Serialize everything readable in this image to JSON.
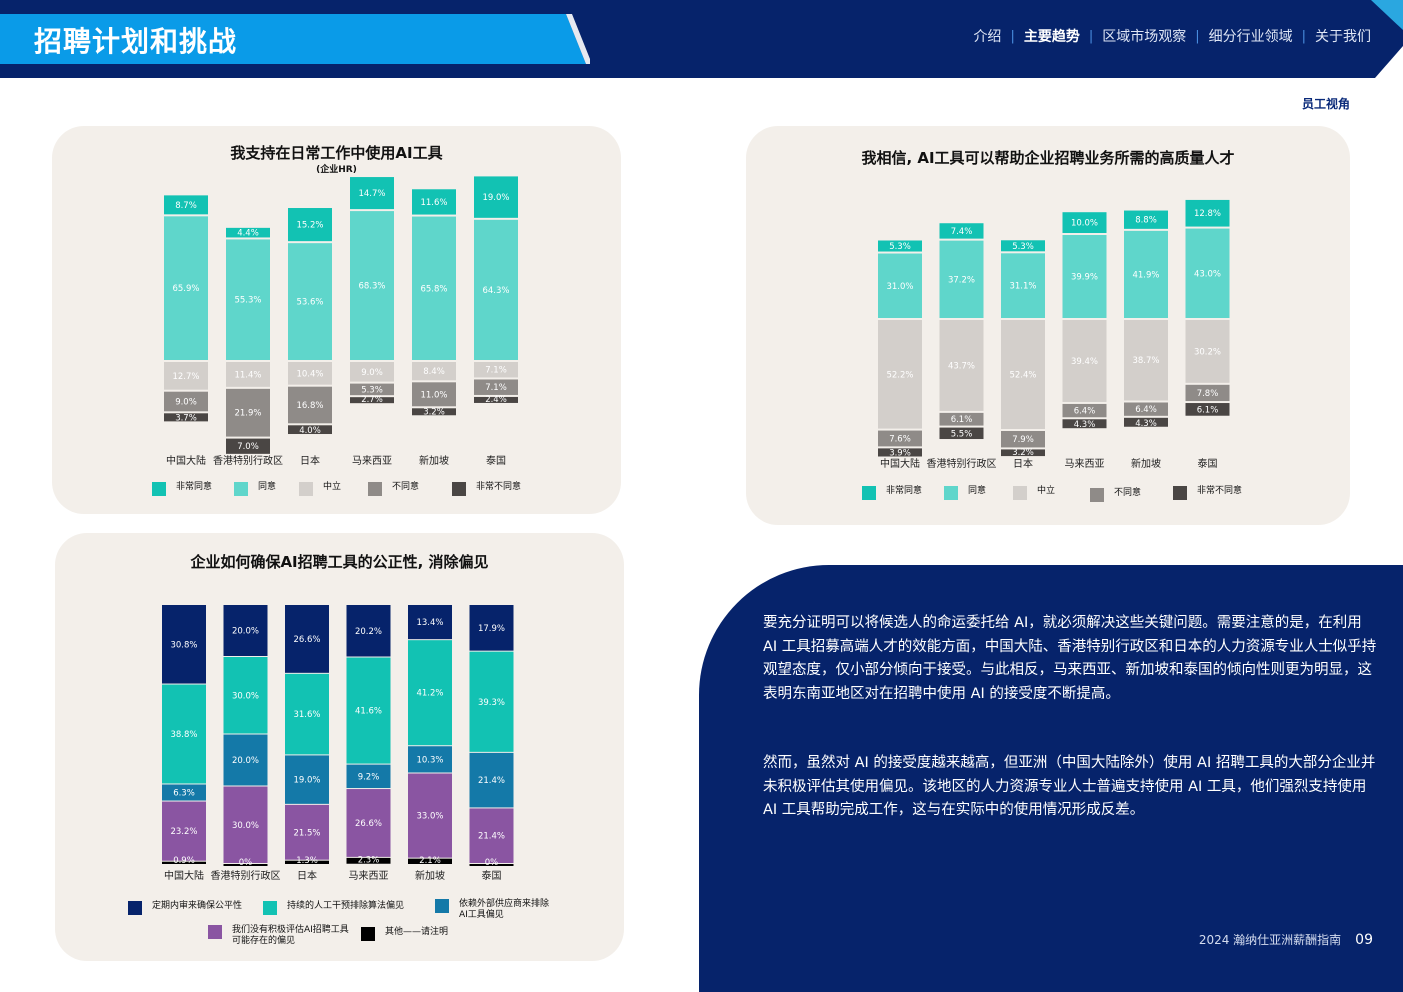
{
  "header": {
    "title": "招聘计划和挑战",
    "nav": [
      "介绍",
      "主要趋势",
      "区域市场观察",
      "细分行业领域",
      "关于我们"
    ],
    "nav_active": 1,
    "section_tag": "员工视角"
  },
  "colors": {
    "navy": "#06236b",
    "blue": "#0a9be8",
    "likert": [
      "#12c2b3",
      "#5fd6cb",
      "#d3cfcb",
      "#8f8b88",
      "#4a4644"
    ],
    "fair": [
      "#06236b",
      "#12c2b3",
      "#1479a8",
      "#8a55a2",
      "#000000"
    ]
  },
  "chart_data": [
    {
      "type": "bar",
      "stacked": true,
      "baseline": "neutral-divergent",
      "title": "我支持在日常工作中使用AI工具",
      "subtitle": "(企业HR)",
      "categories": [
        "中国大陆",
        "香港特别行政区",
        "日本",
        "马来西亚",
        "新加坡",
        "泰国"
      ],
      "series": [
        {
          "name": "非常同意",
          "values": [
            8.7,
            4.4,
            15.2,
            14.7,
            11.6,
            19.0
          ]
        },
        {
          "name": "同意",
          "values": [
            65.9,
            55.3,
            53.6,
            68.3,
            65.8,
            64.3
          ]
        },
        {
          "name": "中立",
          "values": [
            12.7,
            11.4,
            10.4,
            9.0,
            8.4,
            7.1
          ]
        },
        {
          "name": "不同意",
          "values": [
            9.0,
            21.9,
            16.8,
            5.3,
            11.0,
            7.1
          ]
        },
        {
          "name": "非常不同意",
          "values": [
            3.7,
            7.0,
            4.0,
            2.7,
            3.2,
            2.4
          ]
        }
      ]
    },
    {
      "type": "bar",
      "stacked": true,
      "baseline": "neutral-divergent",
      "title": "我相信, AI工具可以帮助企业招聘业务所需的高质量人才",
      "subtitle": "",
      "categories": [
        "中国大陆",
        "香港特别行政区",
        "日本",
        "马来西亚",
        "新加坡",
        "泰国"
      ],
      "series": [
        {
          "name": "非常同意",
          "values": [
            5.3,
            7.4,
            5.3,
            10.0,
            8.8,
            12.8
          ]
        },
        {
          "name": "同意",
          "values": [
            31.0,
            37.2,
            31.1,
            39.9,
            41.9,
            43.0
          ]
        },
        {
          "name": "中立",
          "values": [
            52.2,
            43.7,
            52.4,
            39.4,
            38.7,
            30.2
          ]
        },
        {
          "name": "不同意",
          "values": [
            7.6,
            6.1,
            7.9,
            6.4,
            6.4,
            7.8
          ]
        },
        {
          "name": "非常不同意",
          "values": [
            3.9,
            5.5,
            3.2,
            4.3,
            4.3,
            6.1
          ]
        }
      ]
    },
    {
      "type": "bar",
      "stacked": true,
      "title": "企业如何确保AI招聘工具的公正性, 消除偏见",
      "subtitle": "",
      "categories": [
        "中国大陆",
        "香港特别行政区",
        "日本",
        "马来西亚",
        "新加坡",
        "泰国"
      ],
      "series": [
        {
          "name": "定期内审来确保公平性",
          "values": [
            30.8,
            20.0,
            26.6,
            20.2,
            13.4,
            17.9
          ]
        },
        {
          "name": "持续的人工干预排除算法偏见",
          "values": [
            38.8,
            30.0,
            31.6,
            41.6,
            41.2,
            39.3
          ]
        },
        {
          "name": "依赖外部供应商来排除\nAI工具偏见",
          "values": [
            6.3,
            20.0,
            19.0,
            9.2,
            10.3,
            21.4
          ]
        },
        {
          "name": "我们没有积极评估AI招聘工具\n可能存在的偏见",
          "values": [
            23.2,
            30.0,
            21.5,
            26.6,
            33.0,
            21.4
          ]
        },
        {
          "name": "其他——请注明",
          "values": [
            0.9,
            0.0,
            1.3,
            2.3,
            2.1,
            0.0
          ]
        }
      ]
    }
  ],
  "panel": {
    "paragraphs": [
      "要充分证明可以将候选人的命运委托给 AI，就必须解决这些关键问题。需要注意的是，在利用 AI 工具招募高端人才的效能方面，中国大陆、香港特别行政区和日本的人力资源专业人士似乎持观望态度，仅小部分倾向于接受。与此相反，马来西亚、新加坡和泰国的倾向性则更为明显，这表明东南亚地区对在招聘中使用 AI 的接受度不断提高。",
      "然而，虽然对 AI 的接受度越来越高，但亚洲（中国大陆除外）使用 AI 招聘工具的大部分企业并未积极评估其使用偏见。该地区的人力资源专业人士普遍支持使用 AI 工具，他们强烈支持使用 AI 工具帮助完成工作，这与在实际中的使用情况形成反差。"
    ]
  },
  "footer": {
    "text": "2024 瀚纳仕亚洲薪酬指南",
    "page": "09"
  }
}
